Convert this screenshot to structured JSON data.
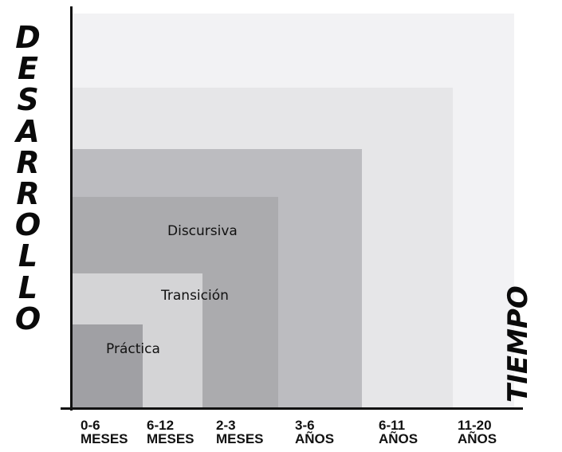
{
  "y_axis_label": [
    "D",
    "E",
    "S",
    "A",
    "R",
    "R",
    "O",
    "L",
    "L",
    "O"
  ],
  "x_axis_label": "TIEMPO",
  "regions": {
    "practica": "Práctica",
    "transicion": "Transición",
    "discursiva": "Discursiva"
  },
  "ticks": [
    {
      "top": "0-6",
      "bottom": "MESES"
    },
    {
      "top": "6-12",
      "bottom": "MESES"
    },
    {
      "top": "2-3",
      "bottom": "MESES"
    },
    {
      "top": "3-6",
      "bottom": "AÑOS"
    },
    {
      "top": "6-11",
      "bottom": "AÑOS"
    },
    {
      "top": "11-20",
      "bottom": "AÑOS"
    }
  ],
  "colors": {
    "rect_6": "#f2f2f4",
    "rect_5": "#e6e6e8",
    "rect_4": "#bcbcc0",
    "rect_3": "#ababae",
    "rect_2": "#d4d4d6",
    "rect_1": "#a0a0a4",
    "axis": "#111111"
  }
}
